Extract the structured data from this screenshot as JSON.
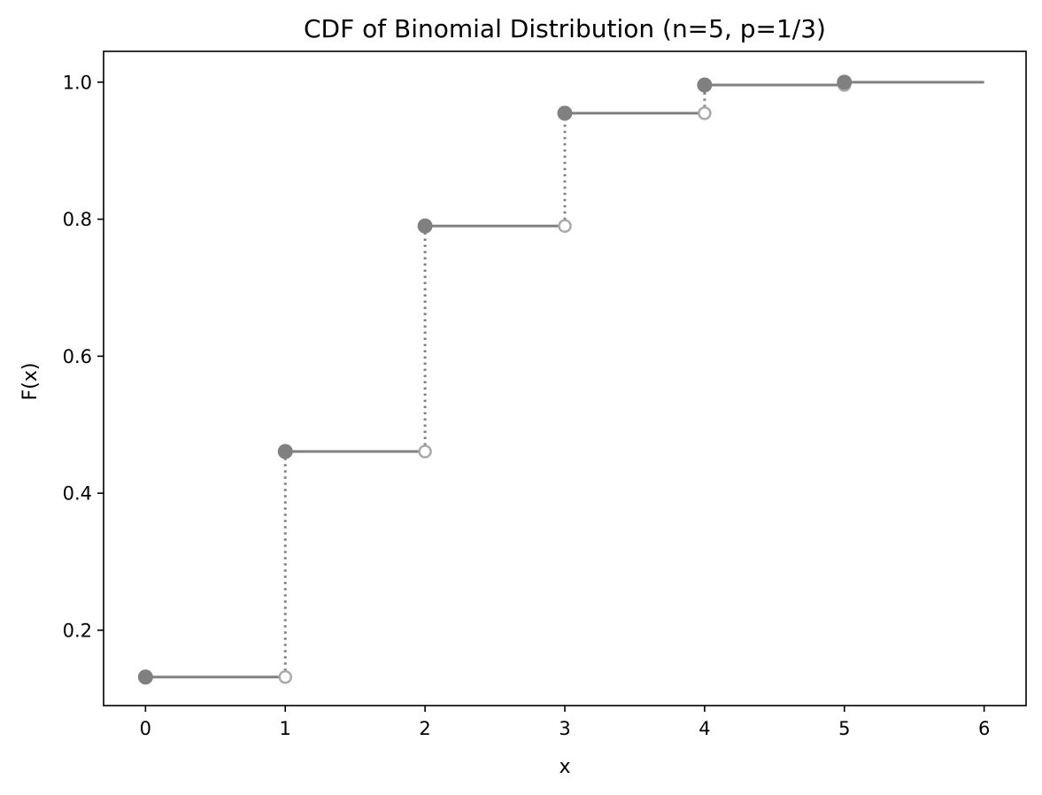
{
  "chart_data": {
    "type": "line",
    "subtype": "step-cdf",
    "title": "CDF of Binomial Distribution (n=5, p=1/3)",
    "xlabel": "x",
    "ylabel": "F(x)",
    "xlim": [
      -0.3,
      6.3
    ],
    "ylim": [
      0.09,
      1.045
    ],
    "xticks": [
      "0",
      "1",
      "2",
      "3",
      "4",
      "5",
      "6"
    ],
    "yticks": [
      "0.2",
      "0.4",
      "0.6",
      "0.8",
      "1.0"
    ],
    "grid": false,
    "x": [
      0,
      1,
      2,
      3,
      4,
      5
    ],
    "y": [
      0.1317,
      0.4609,
      0.7901,
      0.9547,
      0.9959,
      1.0
    ],
    "last_step_end": 6,
    "colors": {
      "line": "#808080",
      "closed_marker": "#808080",
      "open_marker": "#aaaaaa",
      "axes": "#000000"
    }
  }
}
